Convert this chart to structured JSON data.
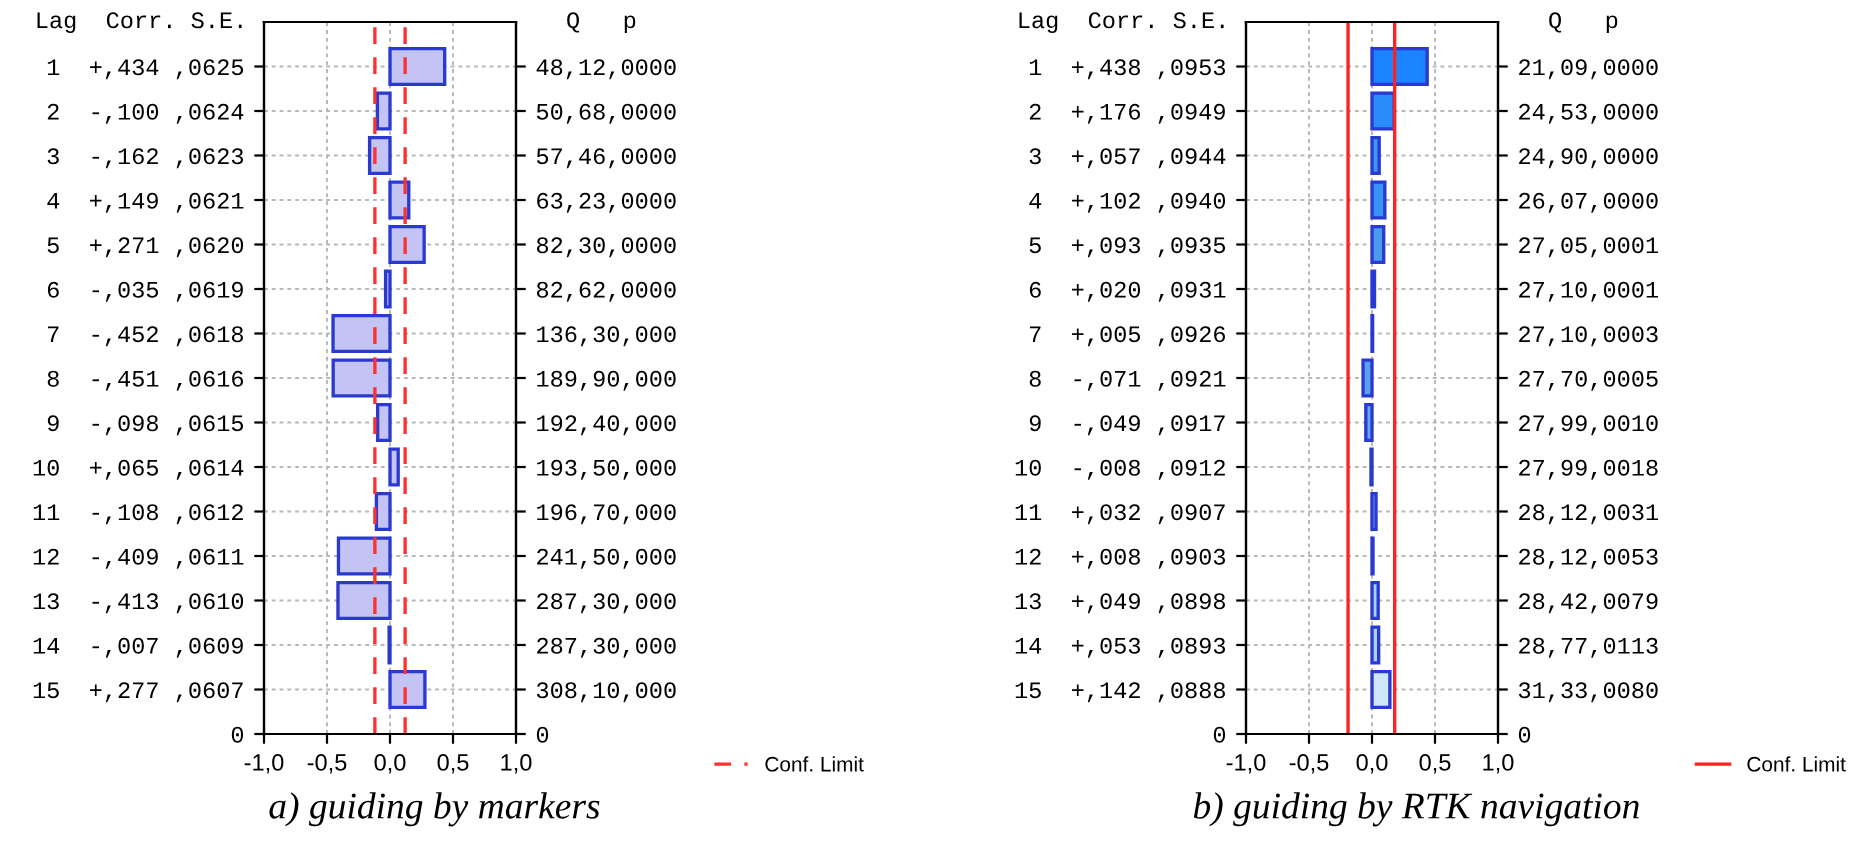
{
  "chart_data": [
    {
      "type": "bar",
      "orientation": "horizontal",
      "title": "a) guiding by markers",
      "ylabel": "Lag  Corr. S.E.",
      "y2label": "Q   p",
      "categories": [
        "1  +,434 ,0625",
        "2  -,100 ,0624",
        "3  -,162 ,0623",
        "4  +,149 ,0621",
        "5  +,271 ,0620",
        "6  -,035 ,0619",
        "7  -,452 ,0618",
        "8  -,451 ,0616",
        "9  -,098 ,0615",
        "10  +,065 ,0614",
        "11  -,108 ,0612",
        "12  -,409 ,0611",
        "13  -,413 ,0610",
        "14  -,007 ,0609",
        "15  +,277 ,0607",
        "0"
      ],
      "y2_categories": [
        "48,12,0000",
        "50,68,0000",
        "57,46,0000",
        "63,23,0000",
        "82,30,0000",
        "82,62,0000",
        "136,30,000",
        "189,90,000",
        "192,40,000",
        "193,50,000",
        "196,70,000",
        "241,50,000",
        "287,30,000",
        "287,30,000",
        "308,10,000",
        "0"
      ],
      "values": [
        0.434,
        -0.1,
        -0.162,
        0.149,
        0.271,
        -0.035,
        -0.452,
        -0.451,
        -0.098,
        0.065,
        -0.108,
        -0.409,
        -0.413,
        -0.007,
        0.277,
        null
      ],
      "color": "#c4c4f4",
      "xlim": [
        -1,
        1
      ],
      "xticks": [
        {
          "value": -1,
          "label": "-1,0"
        },
        {
          "value": -0.5,
          "label": "-0,5"
        },
        {
          "value": 0,
          "label": "0,0"
        },
        {
          "value": 0.5,
          "label": "0,5"
        },
        {
          "value": 1,
          "label": "1,0"
        }
      ],
      "grid": true,
      "legend": "bottom right",
      "ref_lines": [
        {
          "axis": "x",
          "value": -0.12,
          "label": "Conf. Limit",
          "color": "#ff3030",
          "line_style": "dashed"
        },
        {
          "axis": "x",
          "value": 0.12,
          "label": null,
          "color": "#ff3030",
          "line_style": "dashed"
        }
      ]
    },
    {
      "type": "bar",
      "orientation": "horizontal",
      "title": "b) guiding by RTK navigation",
      "ylabel": "Lag  Corr. S.E.",
      "y2label": "Q   p",
      "categories": [
        "1  +,438 ,0953",
        "2  +,176 ,0949",
        "3  +,057 ,0944",
        "4  +,102 ,0940",
        "5  +,093 ,0935",
        "6  +,020 ,0931",
        "7  +,005 ,0926",
        "8  -,071 ,0921",
        "9  -,049 ,0917",
        "10  -,008 ,0912",
        "11  +,032 ,0907",
        "12  +,008 ,0903",
        "13  +,049 ,0898",
        "14  +,053 ,0893",
        "15  +,142 ,0888",
        "0"
      ],
      "y2_categories": [
        "21,09,0000",
        "24,53,0000",
        "24,90,0000",
        "26,07,0000",
        "27,05,0001",
        "27,10,0001",
        "27,10,0003",
        "27,70,0005",
        "27,99,0010",
        "27,99,0018",
        "28,12,0031",
        "28,12,0053",
        "28,42,0079",
        "28,77,0113",
        "31,33,0080",
        "0"
      ],
      "values": [
        0.438,
        0.176,
        0.057,
        0.102,
        0.093,
        0.02,
        0.005,
        -0.071,
        -0.049,
        -0.008,
        0.032,
        0.008,
        0.049,
        0.053,
        0.142,
        null
      ],
      "colors": [
        "#1a85ff",
        "#2a8cfa",
        "#3e95f3",
        "#3a92f5",
        "#4a9af0",
        "#2a78e6",
        "#2a78e6",
        "#5aa2ee",
        "#6aaaf0",
        "#2a78e6",
        "#80b8f2",
        "#3070d0",
        "#a8cff5",
        "#a8cff5",
        "#d0e6fa",
        null
      ],
      "xlim": [
        -1,
        1
      ],
      "xticks": [
        {
          "value": -1,
          "label": "-1,0"
        },
        {
          "value": -0.5,
          "label": "-0,5"
        },
        {
          "value": 0,
          "label": "0,0"
        },
        {
          "value": 0.5,
          "label": "0,5"
        },
        {
          "value": 1,
          "label": "1,0"
        }
      ],
      "grid": true,
      "legend": "bottom right",
      "ref_lines": [
        {
          "axis": "x",
          "value": -0.19,
          "label": "Conf. Limit",
          "color": "#ff2020",
          "line_style": "solid"
        },
        {
          "axis": "x",
          "value": 0.18,
          "label": null,
          "color": "#ff2020",
          "line_style": "solid"
        }
      ]
    }
  ]
}
